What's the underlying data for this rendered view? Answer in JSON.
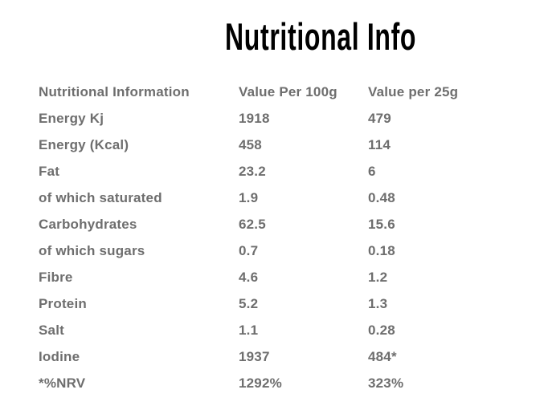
{
  "title": "Nutritional Info",
  "colors": {
    "background": "#ffffff",
    "title_text": "#000000",
    "table_text": "#6e6e6e"
  },
  "table": {
    "columns": [
      "Nutritional Information",
      "Value Per 100g",
      "Value per 25g"
    ],
    "rows": [
      {
        "label": "Energy Kj",
        "per_100g": "1918",
        "per_25g": "479"
      },
      {
        "label": "Energy (Kcal)",
        "per_100g": "458",
        "per_25g": "114"
      },
      {
        "label": "Fat",
        "per_100g": "23.2",
        "per_25g": "6"
      },
      {
        "label": "of which saturated",
        "per_100g": "1.9",
        "per_25g": "0.48"
      },
      {
        "label": "Carbohydrates",
        "per_100g": "62.5",
        "per_25g": "15.6"
      },
      {
        "label": "of which sugars",
        "per_100g": "0.7",
        "per_25g": "0.18"
      },
      {
        "label": "Fibre",
        "per_100g": "4.6",
        "per_25g": "1.2"
      },
      {
        "label": "Protein",
        "per_100g": "5.2",
        "per_25g": "1.3"
      },
      {
        "label": "Salt",
        "per_100g": "1.1",
        "per_25g": "0.28"
      },
      {
        "label": "Iodine",
        "per_100g": "1937",
        "per_25g": "484*"
      },
      {
        "label": "*%NRV",
        "per_100g": "1292%",
        "per_25g": "323%"
      }
    ]
  }
}
